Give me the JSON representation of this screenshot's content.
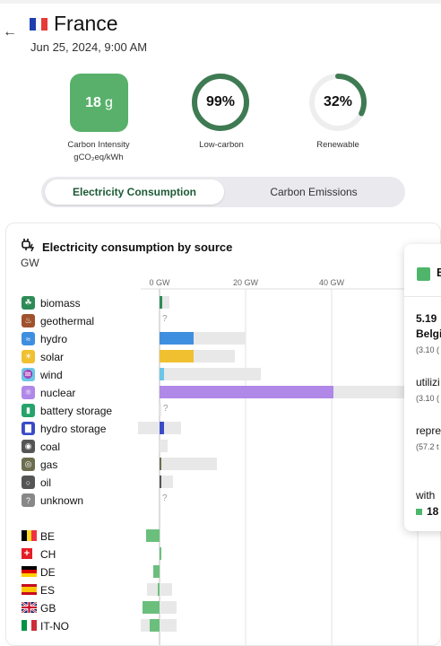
{
  "header": {
    "back_icon": "arrow-left-icon",
    "zone_name": "France",
    "flag_colors": [
      "#1f3fb0",
      "#ffffff",
      "#e63a3a"
    ],
    "timestamp": "Jun 25, 2024, 9:00 AM"
  },
  "summary": {
    "carbon_intensity": {
      "value": "18",
      "unit": "g",
      "label_line1": "Carbon Intensity",
      "label_line2": "gCO₂eq/kWh",
      "color": "#58b06a"
    },
    "low_carbon": {
      "value": "99%",
      "fraction": 0.99,
      "label": "Low-carbon",
      "color": "#3e7a52"
    },
    "renewable": {
      "value": "32%",
      "fraction": 0.32,
      "label": "Renewable",
      "color": "#3e7a52"
    }
  },
  "toggle": {
    "active": "Electricity Consumption",
    "inactive": "Carbon Emissions"
  },
  "panel": {
    "icon": "plug-icon",
    "title": "Electricity consumption by source",
    "unit": "GW",
    "axis_ticks": [
      "0 GW",
      "20 GW",
      "40 GW",
      "6"
    ]
  },
  "sources": [
    {
      "label": "biomass",
      "icon": "leaf-icon",
      "color": "#2e8b57",
      "value_gw": 0.6,
      "capacity_gw": 2.3,
      "unknown": false
    },
    {
      "label": "geothermal",
      "icon": "geothermal-icon",
      "color": "#a0522d",
      "value_gw": 0,
      "capacity_gw": 0,
      "unknown": true
    },
    {
      "label": "hydro",
      "icon": "waves-icon",
      "color": "#3f8fe0",
      "value_gw": 8,
      "capacity_gw": 20,
      "unknown": false
    },
    {
      "label": "solar",
      "icon": "sun-icon",
      "color": "#f0c030",
      "value_gw": 8,
      "capacity_gw": 17.5,
      "unknown": false
    },
    {
      "label": "wind",
      "icon": "wind-icon",
      "color": "#6cc6e8",
      "value_gw": 1,
      "capacity_gw": 23.5,
      "unknown": false
    },
    {
      "label": "nuclear",
      "icon": "atom-icon",
      "color": "#b088e8",
      "value_gw": 40.5,
      "capacity_gw": 63,
      "unknown": false
    },
    {
      "label": "battery storage",
      "icon": "battery-icon",
      "color": "#24a36b",
      "value_gw": 0,
      "capacity_gw": 0.2,
      "unknown": true
    },
    {
      "label": "hydro storage",
      "icon": "hydro-storage-icon",
      "color": "#3a4bc8",
      "value_gw": 1.1,
      "capacity_gw": 5,
      "neg_capacity_gw": -5,
      "unknown": false
    },
    {
      "label": "coal",
      "icon": "coal-icon",
      "color": "#555555",
      "value_gw": 0,
      "capacity_gw": 1.8,
      "unknown": false
    },
    {
      "label": "gas",
      "icon": "gas-icon",
      "color": "#6d6d4f",
      "value_gw": 0.4,
      "capacity_gw": 13.3,
      "unknown": false
    },
    {
      "label": "oil",
      "icon": "oil-drop-icon",
      "color": "#555555",
      "value_gw": 0.2,
      "capacity_gw": 3.2,
      "unknown": false
    },
    {
      "label": "unknown",
      "icon": "question-icon",
      "color": "#888888",
      "value_gw": 0,
      "capacity_gw": 0,
      "unknown": true
    }
  ],
  "exchanges": [
    {
      "label": "BE",
      "flag": [
        "#000000",
        "#fdda24",
        "#ef3340"
      ],
      "flag_dir": "h",
      "value_gw": -3.1,
      "capacity_gw": -3.1
    },
    {
      "label": "CH",
      "flag": [
        "#e41e26"
      ],
      "flag_dir": "ch",
      "value_gw": 0.2,
      "capacity_gw": 0.3
    },
    {
      "label": "DE",
      "flag": [
        "#000000",
        "#dd0000",
        "#ffce00"
      ],
      "flag_dir": "v",
      "value_gw": -1.5,
      "capacity_gw": -1.5
    },
    {
      "label": "ES",
      "flag": [
        "#c60b1e",
        "#ffc400",
        "#c60b1e"
      ],
      "flag_dir": "es",
      "value_gw": -0.5,
      "capacity_gw": -3,
      "cap_pos_gw": 3
    },
    {
      "label": "GB",
      "flag": [
        "#012169",
        "#ffffff",
        "#c8102e"
      ],
      "flag_dir": "gb",
      "value_gw": -4,
      "capacity_gw": -4,
      "cap_pos_gw": 4
    },
    {
      "label": "IT-NO",
      "flag": [
        "#009246",
        "#ffffff",
        "#ce2b37"
      ],
      "flag_dir": "h",
      "value_gw": -2.3,
      "capacity_gw": -4.3,
      "cap_pos_gw": 4
    }
  ],
  "tooltip": {
    "title": "B",
    "line1": "5.19",
    "line2": "Belgi",
    "line3": "(3.10 (",
    "line4": "utilizi",
    "line5": "(3.10 (",
    "line6": "repre",
    "line7": "(57.2 t",
    "line8": "with",
    "line9": "18"
  }
}
